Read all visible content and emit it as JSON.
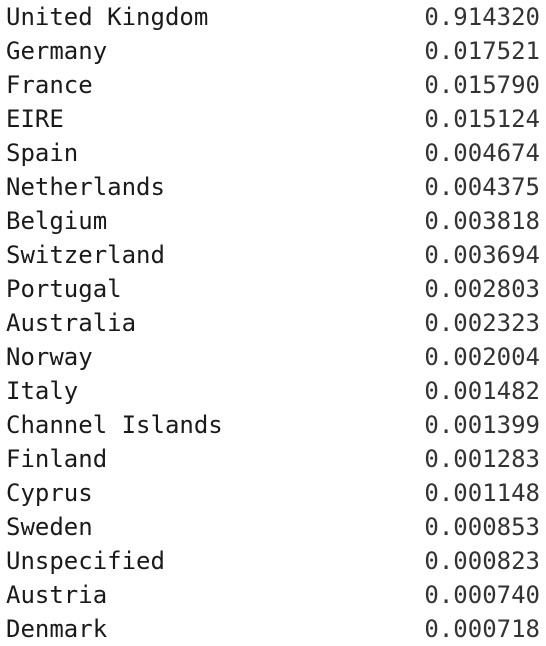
{
  "series_output": {
    "rows": [
      {
        "label": "United Kingdom",
        "value": "0.914320"
      },
      {
        "label": "Germany",
        "value": "0.017521"
      },
      {
        "label": "France",
        "value": "0.015790"
      },
      {
        "label": "EIRE",
        "value": "0.015124"
      },
      {
        "label": "Spain",
        "value": "0.004674"
      },
      {
        "label": "Netherlands",
        "value": "0.004375"
      },
      {
        "label": "Belgium",
        "value": "0.003818"
      },
      {
        "label": "Switzerland",
        "value": "0.003694"
      },
      {
        "label": "Portugal",
        "value": "0.002803"
      },
      {
        "label": "Australia",
        "value": "0.002323"
      },
      {
        "label": "Norway",
        "value": "0.002004"
      },
      {
        "label": "Italy",
        "value": "0.001482"
      },
      {
        "label": "Channel Islands",
        "value": "0.001399"
      },
      {
        "label": "Finland",
        "value": "0.001283"
      },
      {
        "label": "Cyprus",
        "value": "0.001148"
      },
      {
        "label": "Sweden",
        "value": "0.000853"
      },
      {
        "label": "Unspecified",
        "value": "0.000823"
      },
      {
        "label": "Austria",
        "value": "0.000740"
      },
      {
        "label": "Denmark",
        "value": "0.000718"
      }
    ]
  }
}
